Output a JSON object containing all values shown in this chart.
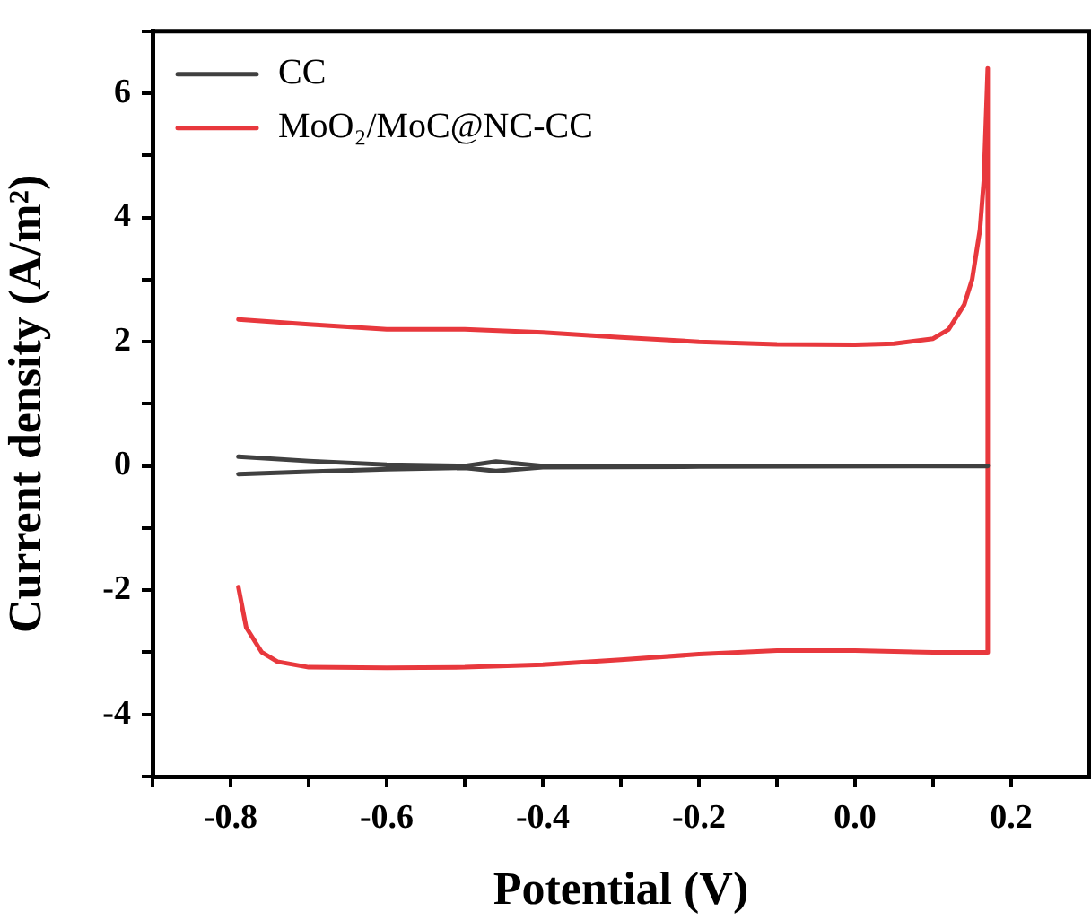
{
  "chart_data": {
    "type": "line",
    "xlabel": "Potential (V)",
    "ylabel": "Current density (A/m²)",
    "xlim": [
      -0.9,
      0.3
    ],
    "xticks": [
      {
        "value": -0.9,
        "label": null
      },
      -0.8,
      {
        "value": -0.7,
        "label": null
      },
      -0.6,
      {
        "value": -0.5,
        "label": null
      },
      -0.4,
      {
        "value": -0.3,
        "label": null
      },
      -0.2,
      {
        "value": -0.1,
        "label": null
      },
      {
        "value": 0,
        "label": "0.0"
      },
      {
        "value": 0.1,
        "label": null
      },
      0.2
    ],
    "ylim": [
      -5,
      7
    ],
    "yticks": [
      {
        "value": -5,
        "label": null
      },
      -4,
      {
        "value": -3,
        "label": null
      },
      -2,
      {
        "value": -1,
        "label": null
      },
      0,
      {
        "value": 1,
        "label": null
      },
      2,
      {
        "value": 3,
        "label": null
      },
      4,
      {
        "value": 5,
        "label": null
      },
      6,
      {
        "value": 7,
        "label": null
      }
    ],
    "grid": false,
    "legend": "top left",
    "marker": "none",
    "line_style": "solid",
    "series": [
      {
        "name": "CC",
        "color": "#404040",
        "x": [
          -0.79,
          -0.7,
          -0.6,
          -0.5,
          -0.46,
          -0.4,
          -0.2,
          0.17,
          -0.2,
          -0.4,
          -0.46,
          -0.5,
          -0.6,
          -0.7,
          -0.79
        ],
        "values": [
          0.15,
          0.08,
          0.02,
          0.0,
          0.07,
          0.0,
          0.0,
          0.0,
          -0.01,
          -0.02,
          -0.08,
          -0.03,
          -0.05,
          -0.09,
          -0.13
        ]
      },
      {
        "name": "MoO₂/MoC@NC-CC",
        "color": "#e8383d",
        "x": [
          -0.79,
          -0.7,
          -0.6,
          -0.5,
          -0.4,
          -0.3,
          -0.2,
          -0.1,
          0,
          0.05,
          0.1,
          0.12,
          0.14,
          0.15,
          0.16,
          0.165,
          0.17,
          0.17,
          0.1,
          0,
          -0.1,
          -0.2,
          -0.3,
          -0.4,
          -0.5,
          -0.6,
          -0.7,
          -0.74,
          -0.76,
          -0.78,
          -0.79
        ],
        "values": [
          2.36,
          2.28,
          2.2,
          2.2,
          2.15,
          2.07,
          2.0,
          1.96,
          1.95,
          1.97,
          2.05,
          2.2,
          2.6,
          3.0,
          3.8,
          4.6,
          6.4,
          -3.0,
          -3.0,
          -2.97,
          -2.97,
          -3.03,
          -3.12,
          -3.2,
          -3.24,
          -3.25,
          -3.24,
          -3.15,
          -3.0,
          -2.6,
          -1.95
        ]
      }
    ]
  }
}
